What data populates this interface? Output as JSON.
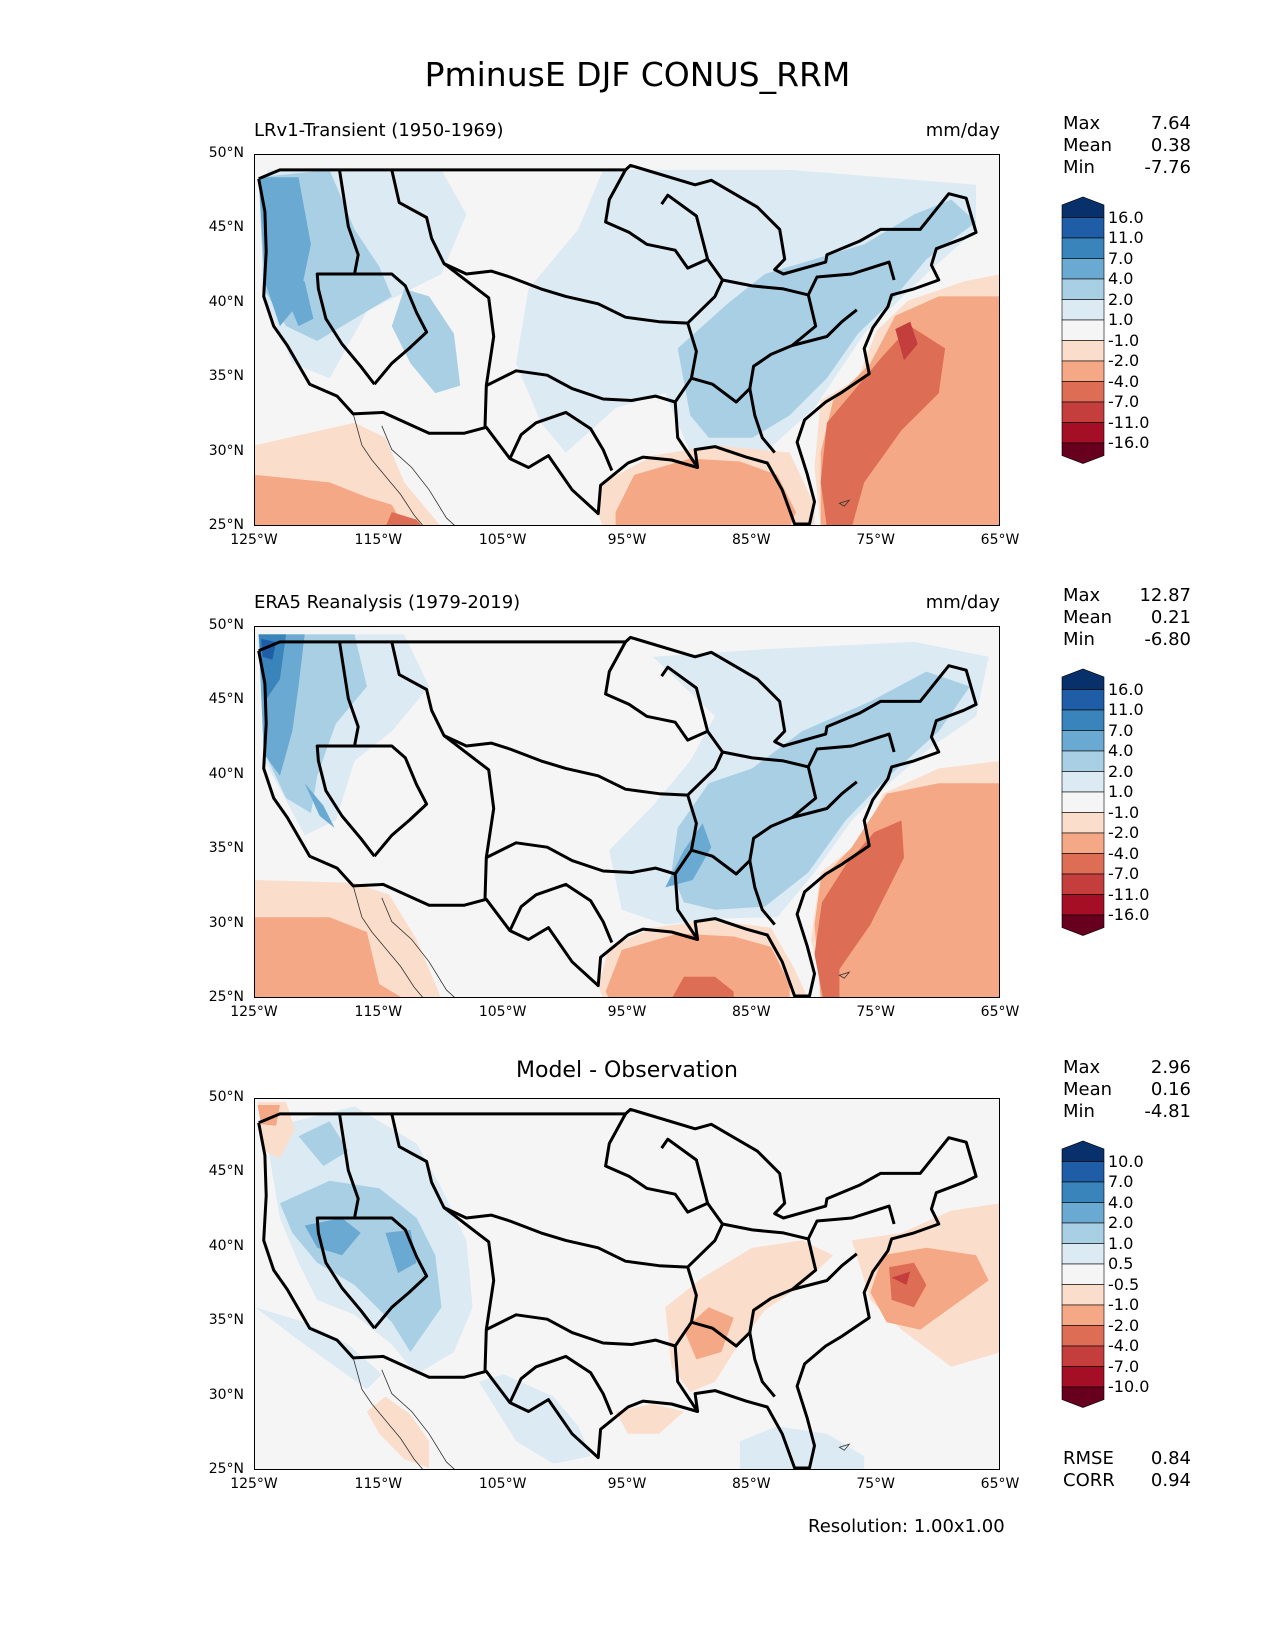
{
  "title": "PminusE DJF CONUS_RRM",
  "colors": {
    "neg16": "#67001f",
    "neg11": "#a50f26",
    "neg7": "#c53e3e",
    "neg4": "#de6d55",
    "neg2": "#f4a885",
    "neg1": "#fbddcb",
    "zero": "#f5f5f5",
    "pos1": "#dbeaf3",
    "pos2": "#a9cfe5",
    "pos4": "#6aa9d1",
    "pos7": "#3a84bc",
    "pos11": "#1f5ea6",
    "pos16": "#08306b",
    "border": "#000000",
    "coast": "#333333"
  },
  "axes": {
    "lat_ticks": [
      "50°N",
      "45°N",
      "40°N",
      "35°N",
      "30°N",
      "25°N"
    ],
    "lon_ticks": [
      "125°W",
      "115°W",
      "105°W",
      "95°W",
      "85°W",
      "75°W",
      "65°W"
    ]
  },
  "panels": [
    {
      "title": "LRv1-Transient (1950-1969)",
      "units": "mm/day",
      "stats": [
        {
          "label": "Max",
          "value": "7.64"
        },
        {
          "label": "Mean",
          "value": "0.38"
        },
        {
          "label": "Min",
          "value": "-7.76"
        }
      ],
      "colorbar_levels": [
        "16.0",
        "11.0",
        "7.0",
        "4.0",
        "2.0",
        "1.0",
        "-1.0",
        "-2.0",
        "-4.0",
        "-7.0",
        "-11.0",
        "-16.0"
      ]
    },
    {
      "title": "ERA5 Reanalysis (1979-2019)",
      "units": "mm/day",
      "stats": [
        {
          "label": "Max",
          "value": "12.87"
        },
        {
          "label": "Mean",
          "value": "0.21"
        },
        {
          "label": "Min",
          "value": "-6.80"
        }
      ],
      "colorbar_levels": [
        "16.0",
        "11.0",
        "7.0",
        "4.0",
        "2.0",
        "1.0",
        "-1.0",
        "-2.0",
        "-4.0",
        "-7.0",
        "-11.0",
        "-16.0"
      ]
    },
    {
      "title": "Model - Observation",
      "units": "",
      "stats": [
        {
          "label": "Max",
          "value": "2.96"
        },
        {
          "label": "Mean",
          "value": "0.16"
        },
        {
          "label": "Min",
          "value": "-4.81"
        }
      ],
      "colorbar_levels": [
        "10.0",
        "7.0",
        "4.0",
        "2.0",
        "1.0",
        "0.5",
        "-0.5",
        "-1.0",
        "-2.0",
        "-4.0",
        "-7.0",
        "-10.0"
      ],
      "extra_stats": [
        {
          "label": "RMSE",
          "value": "0.84"
        },
        {
          "label": "CORR",
          "value": "0.94"
        }
      ]
    }
  ],
  "footer": "Resolution: 1.00x1.00"
}
